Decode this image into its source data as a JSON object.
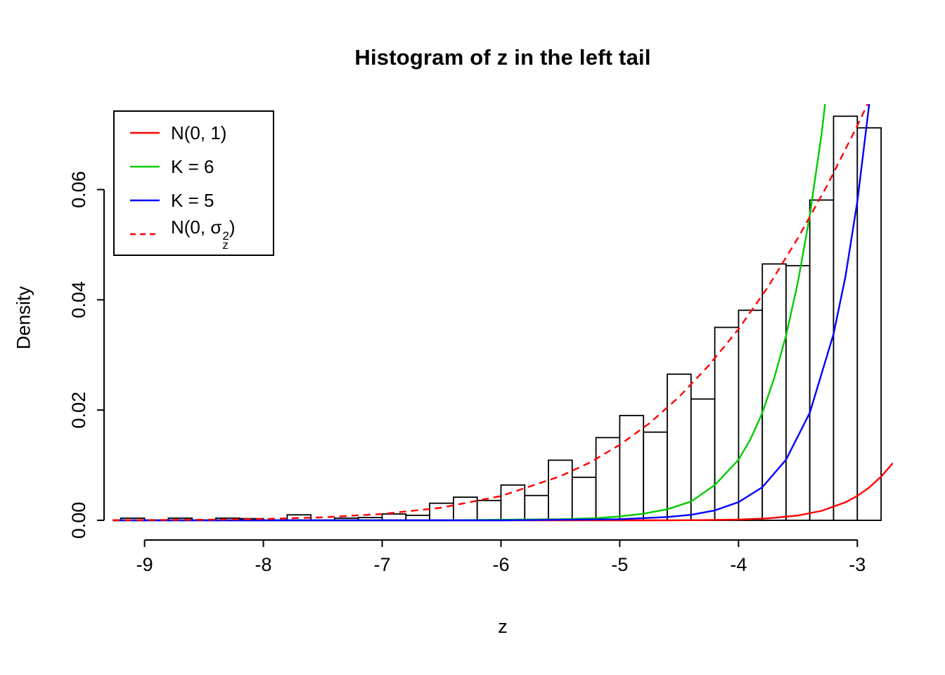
{
  "chart_data": {
    "type": "bar",
    "subtype": "histogram-with-density-curves",
    "title": "Histogram of z in the left tail",
    "xlabel": "z",
    "ylabel": "Density",
    "xlim": [
      -9.27,
      -2.7
    ],
    "ylim": [
      0,
      0.075
    ],
    "x_ticks": [
      -9,
      -8,
      -7,
      -6,
      -5,
      -4,
      -3
    ],
    "x_tick_labels": [
      "-9",
      "-8",
      "-7",
      "-6",
      "-5",
      "-4",
      "-3"
    ],
    "y_ticks": [
      0,
      0.02,
      0.04,
      0.06
    ],
    "y_tick_labels": [
      "0.00",
      "0.02",
      "0.04",
      "0.06"
    ],
    "grid": false,
    "bin_width": 0.2,
    "bar_fill": "#ffffff",
    "bar_stroke": "#000000",
    "baseline_extent": [
      -9.2,
      -2.8
    ],
    "bars": [
      [
        -9.2,
        0.0004
      ],
      [
        -8.8,
        0.0004
      ],
      [
        -8.4,
        0.0004
      ],
      [
        -8.2,
        0.0003
      ],
      [
        -7.8,
        0.001
      ],
      [
        -7.4,
        0.0004
      ],
      [
        -7.2,
        0.0005
      ],
      [
        -7.0,
        0.00115
      ],
      [
        -6.8,
        0.0009
      ],
      [
        -6.6,
        0.0031
      ],
      [
        -6.4,
        0.0042
      ],
      [
        -6.2,
        0.0036
      ],
      [
        -6.0,
        0.0064
      ],
      [
        -5.8,
        0.0045
      ],
      [
        -5.6,
        0.0109
      ],
      [
        -5.4,
        0.0078
      ],
      [
        -5.2,
        0.015
      ],
      [
        -5.0,
        0.019
      ],
      [
        -4.8,
        0.016
      ],
      [
        -4.6,
        0.0265
      ],
      [
        -4.4,
        0.022
      ],
      [
        -4.2,
        0.035
      ],
      [
        -4.0,
        0.0381
      ],
      [
        -3.8,
        0.0465
      ],
      [
        -3.6,
        0.0462
      ],
      [
        -3.4,
        0.0581
      ],
      [
        -3.2,
        0.0733
      ],
      [
        -3.0,
        0.0712
      ]
    ],
    "series": [
      {
        "name": "N(0, 1)",
        "color": "#ff0000",
        "dash": "none",
        "points": [
          [
            -9.27,
            0
          ],
          [
            -7,
            0
          ],
          [
            -6,
            0
          ],
          [
            -5.5,
            5e-07
          ],
          [
            -5,
            1.5e-06
          ],
          [
            -4.75,
            5e-06
          ],
          [
            -4.5,
            1.6e-05
          ],
          [
            -4.25,
            4.86e-05
          ],
          [
            -4,
            0.000134
          ],
          [
            -3.75,
            0.000354
          ],
          [
            -3.5,
            0.000873
          ],
          [
            -3.3,
            0.00172
          ],
          [
            -3.1,
            0.00327
          ],
          [
            -3,
            0.00443
          ],
          [
            -2.9,
            0.00595
          ],
          [
            -2.8,
            0.00792
          ],
          [
            -2.7,
            0.0104
          ]
        ]
      },
      {
        "name": "K = 6",
        "color": "#00cc00",
        "dash": "none",
        "points": [
          [
            -9.27,
            0
          ],
          [
            -6.5,
            0
          ],
          [
            -6,
            0.0001
          ],
          [
            -5.5,
            0.0002
          ],
          [
            -5.2,
            0.0004
          ],
          [
            -5,
            0.0007
          ],
          [
            -4.8,
            0.0012
          ],
          [
            -4.6,
            0.002
          ],
          [
            -4.4,
            0.0034
          ],
          [
            -4.2,
            0.0064
          ],
          [
            -4,
            0.011
          ],
          [
            -3.9,
            0.0147
          ],
          [
            -3.8,
            0.0195
          ],
          [
            -3.7,
            0.0258
          ],
          [
            -3.6,
            0.0335
          ],
          [
            -3.5,
            0.0432
          ],
          [
            -3.4,
            0.0553
          ],
          [
            -3.3,
            0.0702
          ],
          [
            -3.2,
            0.089
          ]
        ]
      },
      {
        "name": "K = 5",
        "color": "#0000ff",
        "dash": "none",
        "points": [
          [
            -9.27,
            0
          ],
          [
            -6,
            0
          ],
          [
            -5.5,
            0.0001
          ],
          [
            -5,
            0.0002
          ],
          [
            -4.8,
            0.0004
          ],
          [
            -4.6,
            0.0006
          ],
          [
            -4.4,
            0.001
          ],
          [
            -4.2,
            0.0018
          ],
          [
            -4,
            0.0033
          ],
          [
            -3.8,
            0.006
          ],
          [
            -3.6,
            0.011
          ],
          [
            -3.4,
            0.0195
          ],
          [
            -3.2,
            0.0338
          ],
          [
            -3.1,
            0.0442
          ],
          [
            -3,
            0.0578
          ],
          [
            -2.9,
            0.0755
          ],
          [
            -2.8,
            0.098
          ]
        ]
      },
      {
        "name": "N(0, σz²)",
        "color": "#ff0000",
        "dash": "10,7",
        "points": [
          [
            -9.27,
            2e-05
          ],
          [
            -8.5,
            0.0001
          ],
          [
            -8,
            0.00024
          ],
          [
            -7.5,
            0.00054
          ],
          [
            -7,
            0.00115
          ],
          [
            -6.5,
            0.0023
          ],
          [
            -6,
            0.0044
          ],
          [
            -5.5,
            0.008
          ],
          [
            -5.25,
            0.0105
          ],
          [
            -5,
            0.0137
          ],
          [
            -4.75,
            0.0176
          ],
          [
            -4.5,
            0.0224
          ],
          [
            -4.25,
            0.0281
          ],
          [
            -4,
            0.0347
          ],
          [
            -3.75,
            0.0424
          ],
          [
            -3.5,
            0.0512
          ],
          [
            -3.25,
            0.0609
          ],
          [
            -3,
            0.0716
          ],
          [
            -2.75,
            0.083
          ]
        ]
      }
    ],
    "legend": {
      "position": "topleft",
      "items": [
        {
          "label": "N(0, 1)",
          "color": "#ff0000",
          "dash": "none"
        },
        {
          "label": "K = 6",
          "color": "#00cc00",
          "dash": "none"
        },
        {
          "label": "K = 5",
          "color": "#0000ff",
          "dash": "none"
        },
        {
          "label": "N(0, σz²)",
          "label_parts": {
            "prefix": "N(0, ",
            "sigma": "σ",
            "sup": "2",
            "sub": "z",
            "suffix": ")"
          },
          "color": "#ff0000",
          "dash": "8,6"
        }
      ]
    }
  }
}
